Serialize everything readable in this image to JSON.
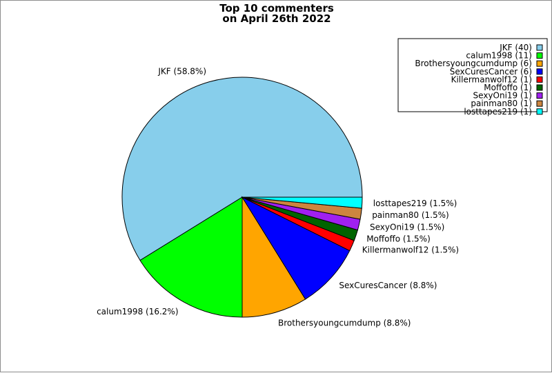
{
  "chart_data": {
    "type": "pie",
    "title": [
      "Top 10 commenters",
      "on April 26th 2022"
    ],
    "slices": [
      {
        "name": "JKF",
        "value": 40,
        "percent_label": "58.8%",
        "legend_label": "JKF (40)",
        "color": "#87ceeb"
      },
      {
        "name": "calum1998",
        "value": 11,
        "percent_label": "16.2%",
        "legend_label": "calum1998 (11)",
        "color": "#00ff00"
      },
      {
        "name": "Brothersyoungcumdump",
        "value": 6,
        "percent_label": "8.8%",
        "legend_label": "Brothersyoungcumdump (6)",
        "color": "#ffa500"
      },
      {
        "name": "SexCuresCancer",
        "value": 6,
        "percent_label": "8.8%",
        "legend_label": "SexCuresCancer (6)",
        "color": "#0000ff"
      },
      {
        "name": "Killermanwolf12",
        "value": 1,
        "percent_label": "1.5%",
        "legend_label": "Killermanwolf12 (1)",
        "color": "#ff0000"
      },
      {
        "name": "Moffoffo",
        "value": 1,
        "percent_label": "1.5%",
        "legend_label": "Moffoffo (1)",
        "color": "#006400"
      },
      {
        "name": "SexyOni19",
        "value": 1,
        "percent_label": "1.5%",
        "legend_label": "SexyOni19 (1)",
        "color": "#a020f0"
      },
      {
        "name": "painman80",
        "value": 1,
        "percent_label": "1.5%",
        "legend_label": "painman80 (1)",
        "color": "#cd853f"
      },
      {
        "name": "losttapes219",
        "value": 1,
        "percent_label": "1.5%",
        "legend_label": "losttapes219 (1)",
        "color": "#00ffff"
      }
    ],
    "legend_position": "top-right",
    "start_angle_direction": "counterclockwise from 3 o'clock"
  }
}
